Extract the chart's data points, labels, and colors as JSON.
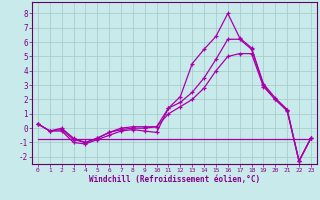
{
  "x": [
    0,
    1,
    2,
    3,
    4,
    5,
    6,
    7,
    8,
    9,
    10,
    11,
    12,
    13,
    14,
    15,
    16,
    17,
    18,
    19,
    20,
    21,
    22,
    23
  ],
  "line1": [
    0.3,
    -0.2,
    -0.2,
    -1.0,
    -1.1,
    -0.8,
    -0.5,
    -0.2,
    -0.1,
    -0.2,
    -0.3,
    1.4,
    2.2,
    4.5,
    5.5,
    6.4,
    8.0,
    6.3,
    5.6,
    3.1,
    2.1,
    1.3,
    -2.3,
    -0.7
  ],
  "line2": [
    0.3,
    -0.2,
    -0.1,
    -0.8,
    -1.0,
    -0.7,
    -0.3,
    -0.1,
    0.0,
    0.0,
    0.1,
    1.4,
    1.8,
    2.5,
    3.5,
    4.8,
    6.2,
    6.2,
    5.5,
    3.0,
    2.0,
    1.3,
    -2.3,
    -0.7
  ],
  "line3": [
    0.3,
    -0.2,
    0.0,
    -0.7,
    -1.0,
    -0.7,
    -0.3,
    0.0,
    0.1,
    0.1,
    0.1,
    1.0,
    1.5,
    2.0,
    2.8,
    4.0,
    5.0,
    5.2,
    5.2,
    2.9,
    2.0,
    1.2,
    -2.3,
    -0.7
  ],
  "line4_x": [
    0,
    23
  ],
  "line4_y": [
    -0.75,
    -0.75
  ],
  "bg_color": "#c8eaea",
  "line_color": "#aa00aa",
  "grid_color": "#a0c8c8",
  "xlabel": "Windchill (Refroidissement éolien,°C)",
  "ylim": [
    -2.5,
    8.8
  ],
  "xlim": [
    -0.5,
    23.5
  ],
  "axis_color": "#660066",
  "tick_color": "#880088"
}
